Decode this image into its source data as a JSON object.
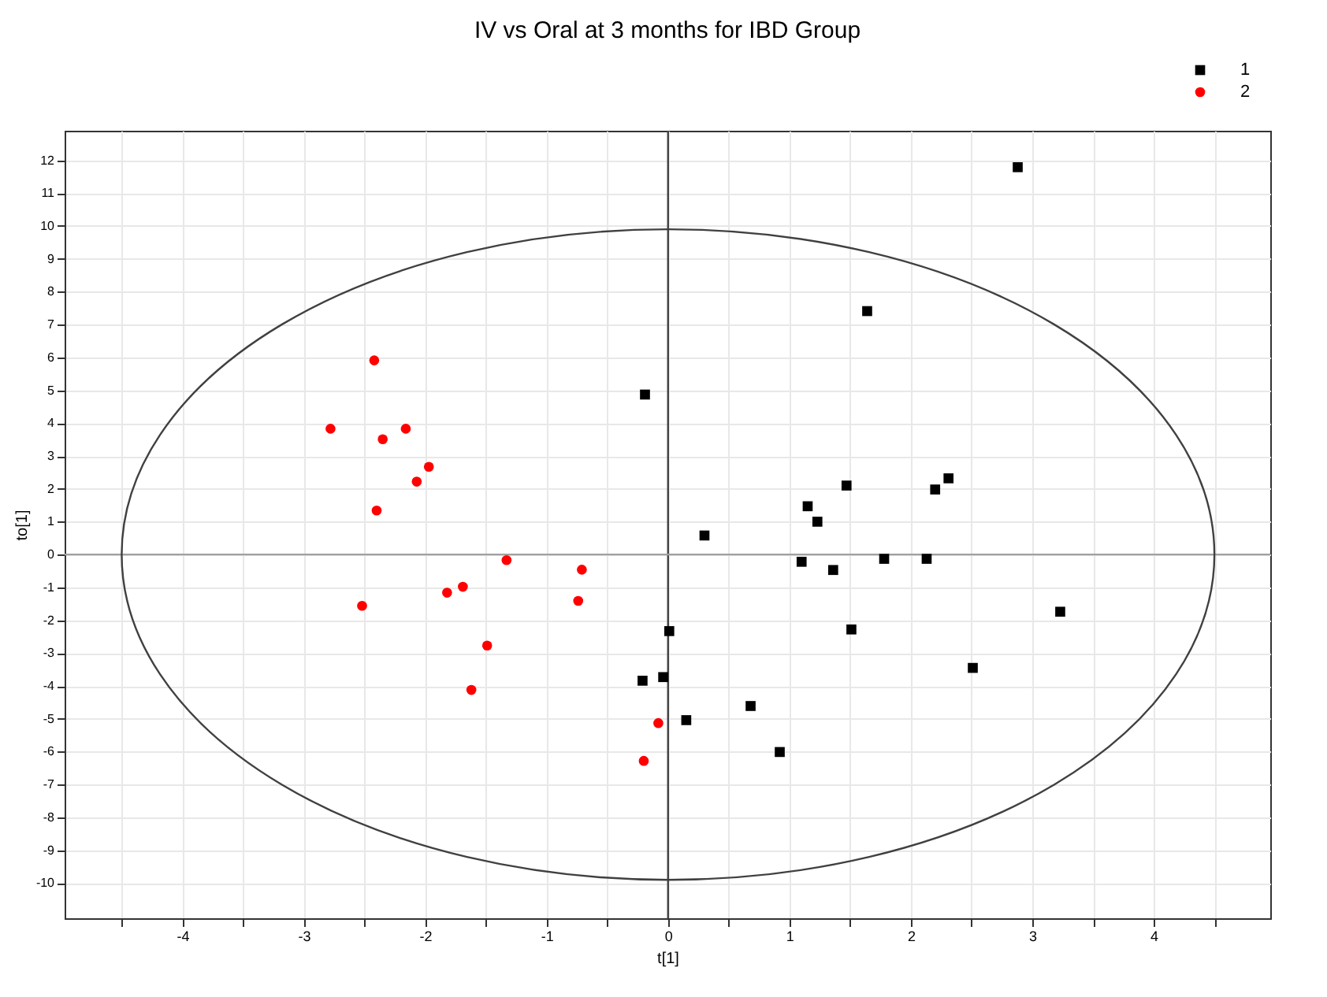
{
  "chart_data": {
    "type": "scatter",
    "title": "IV vs Oral at 3 months for IBD Group",
    "xlabel": "t[1]",
    "ylabel": "to[1]",
    "xlim": [
      -4.97,
      4.96
    ],
    "ylim": [
      -11.07,
      12.9
    ],
    "xticks": [
      -4,
      {
        "value": -4.5,
        "label": null
      },
      {
        "value": -3.5,
        "label": null
      },
      -3,
      {
        "value": -2.5,
        "label": null
      },
      -2,
      {
        "value": -1.5,
        "label": null
      },
      -1,
      {
        "value": -0.5,
        "label": null
      },
      0,
      {
        "value": 0.5,
        "label": null
      },
      1,
      {
        "value": 1.5,
        "label": null
      },
      2,
      {
        "value": 2.5,
        "label": null
      },
      3,
      {
        "value": 3.5,
        "label": null
      },
      4,
      {
        "value": 4.5,
        "label": null
      }
    ],
    "yticks": [
      -10,
      -9,
      -8,
      -7,
      -6,
      -5,
      -4,
      -3,
      -2,
      -1,
      0,
      1,
      2,
      3,
      4,
      5,
      6,
      7,
      8,
      9,
      10,
      11,
      12
    ],
    "grid": true,
    "legend": "top right",
    "ref_lines": [
      {
        "axis": "x",
        "value": 0,
        "color": "#404040"
      },
      {
        "axis": "y",
        "value": 0,
        "color": "#a0a0a0"
      }
    ],
    "series": [
      {
        "name": "1",
        "color": "#000000",
        "marker": "square",
        "x": [
          -0.19,
          2.88,
          1.64,
          0.3,
          1.47,
          1.15,
          1.23,
          2.2,
          2.31,
          1.1,
          1.36,
          1.78,
          2.13,
          3.23,
          1.51,
          2.51,
          0.01,
          -0.21,
          -0.04,
          0.68,
          0.15,
          0.92
        ],
        "values": [
          4.87,
          11.79,
          7.41,
          0.58,
          2.1,
          1.47,
          1.0,
          1.98,
          2.32,
          -0.22,
          -0.47,
          -0.13,
          -0.13,
          -1.74,
          -2.28,
          -3.45,
          -2.33,
          -3.84,
          -3.73,
          -4.61,
          -5.04,
          -6.01
        ]
      },
      {
        "name": "2",
        "color": "#ff0000",
        "marker": "circle",
        "x": [
          -2.42,
          -2.78,
          -2.35,
          -2.16,
          -1.97,
          -2.07,
          -2.4,
          -1.33,
          -0.71,
          -2.52,
          -1.82,
          -1.69,
          -0.74,
          -1.49,
          -1.62,
          -0.08,
          -0.2
        ],
        "values": [
          5.91,
          3.83,
          3.51,
          3.83,
          2.67,
          2.22,
          1.34,
          -0.17,
          -0.46,
          -1.56,
          -1.16,
          -0.98,
          -1.41,
          -2.77,
          -4.12,
          -5.13,
          -6.28
        ]
      }
    ]
  }
}
